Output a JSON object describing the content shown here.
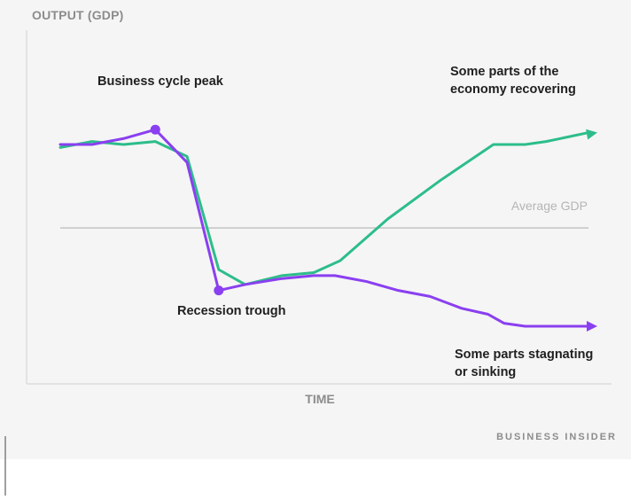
{
  "chart_data": {
    "type": "line",
    "title": "",
    "ylabel": "OUTPUT (GDP)",
    "xlabel": "TIME",
    "xlim": [
      0,
      100
    ],
    "ylim": [
      0,
      100
    ],
    "grid": false,
    "reference_line": {
      "label": "Average GDP",
      "value": 47,
      "color": "#c4c4c4"
    },
    "series": [
      {
        "color": "#2dbd8a",
        "x": [
          0,
          6,
          12,
          18,
          24,
          30,
          35,
          42,
          48,
          53,
          62,
          72,
          82,
          88,
          92,
          100
        ],
        "y": [
          74,
          76,
          75,
          76,
          71,
          33,
          28,
          31,
          32,
          36,
          50,
          63,
          75,
          75,
          76,
          79
        ]
      },
      {
        "color": "#8a3ff0",
        "x": [
          0,
          6,
          12,
          18,
          24,
          30,
          35,
          42,
          48,
          52,
          58,
          64,
          70,
          76,
          81,
          84,
          88,
          92,
          96,
          100
        ],
        "y": [
          75,
          75,
          77,
          80,
          69,
          26,
          28,
          30,
          31,
          31,
          29,
          26,
          24,
          20,
          18,
          15,
          14,
          14,
          14,
          14
        ]
      }
    ],
    "highlighted_points": [
      {
        "name": "peak",
        "series": 1,
        "x": 18,
        "y": 80,
        "label": "Business cycle peak"
      },
      {
        "name": "trough",
        "series": 1,
        "x": 30,
        "y": 26,
        "label": "Recession trough"
      }
    ],
    "annotations": [
      {
        "name": "recovering",
        "lines": [
          "Some parts of the",
          "economy recovering"
        ]
      },
      {
        "name": "stagnating",
        "lines": [
          "Some parts stagnating",
          "or sinking"
        ]
      }
    ],
    "colors": {
      "background": "#f5f5f5",
      "axis": "#dcdcdc",
      "axis_label": "#8c8c8c",
      "annotation_text": "#1f1f1f",
      "reference_label": "#b5b5b5",
      "brand": "#8c8c8c"
    }
  },
  "brand": {
    "text": "BUSINESS INSIDER"
  }
}
